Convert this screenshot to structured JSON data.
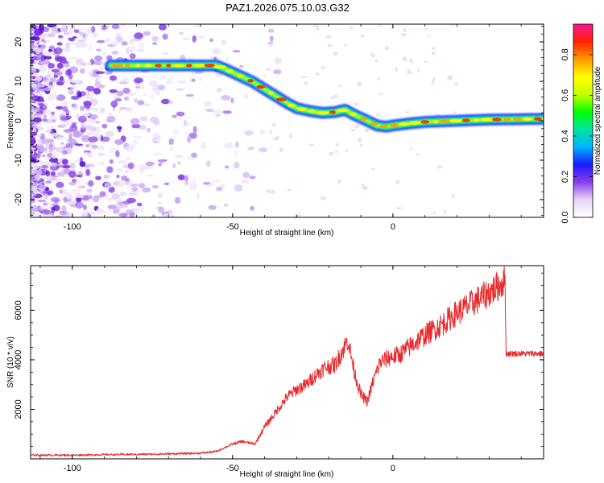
{
  "chart_data": [
    {
      "type": "heatmap",
      "title": "PAZ1.2026.075.10.03.G32",
      "xlabel": "Height of straight line (km)",
      "ylabel": "Frequency (Hz)",
      "xlim": [
        -113,
        47
      ],
      "ylim": [
        -24.5,
        24.5
      ],
      "xticks": [
        -100,
        -50,
        0
      ],
      "yticks": [
        -20,
        -10,
        0,
        10,
        20
      ],
      "colorbar": {
        "label": "Normalized spectral amplitude",
        "range": [
          0,
          0.95
        ],
        "ticks": [
          0.0,
          0.2,
          0.4,
          0.6,
          0.8
        ],
        "tick_labels": [
          "0.0",
          "0.2",
          "0.4",
          "0.6",
          "0.8"
        ],
        "colors": [
          "#ffffff",
          "#e6d5f7",
          "#8a3fe8",
          "#1a1aff",
          "#00b4ff",
          "#00e5a0",
          "#00ff00",
          "#c8ff00",
          "#ffff00",
          "#ff9900",
          "#ff2200",
          "#ff1493"
        ]
      },
      "ridge": {
        "description": "main spectral ridge: frequency (Hz) vs height (km)",
        "x": [
          -88,
          -75,
          -65,
          -55,
          -52,
          -48,
          -44,
          -40,
          -36,
          -33,
          -30,
          -26,
          -22,
          -18,
          -15,
          -12,
          -8,
          -5,
          -2,
          0,
          5,
          10,
          20,
          30,
          40,
          47
        ],
        "y": [
          14,
          14,
          14,
          14,
          13,
          11.5,
          10,
          8,
          6,
          4.5,
          3.2,
          2.5,
          2,
          2.2,
          2.8,
          1.5,
          0,
          -1.2,
          -1.5,
          -1.2,
          -0.7,
          -0.3,
          0,
          0.3,
          0.4,
          0.5
        ]
      }
    },
    {
      "type": "line",
      "xlabel": "Height of straight line (km)",
      "ylabel": "SNR (10 * v/v)",
      "xlim": [
        -113,
        47
      ],
      "ylim": [
        0,
        7800
      ],
      "xticks": [
        -100,
        -50,
        0
      ],
      "yticks": [
        2000,
        4000,
        6000
      ],
      "color": "#e8282a",
      "series": [
        {
          "name": "SNR",
          "x": [
            -113,
            -100,
            -90,
            -80,
            -70,
            -60,
            -55,
            -50,
            -47,
            -43,
            -40,
            -37,
            -33,
            -30,
            -27,
            -24,
            -21,
            -18,
            -16,
            -14,
            -12,
            -10,
            -8,
            -6,
            -4,
            -1,
            2,
            5,
            10,
            15,
            20,
            25,
            30,
            33,
            35,
            35.3,
            40,
            47
          ],
          "y": [
            150,
            150,
            170,
            180,
            200,
            230,
            300,
            600,
            700,
            600,
            1300,
            1800,
            2500,
            2800,
            3000,
            3400,
            3700,
            3800,
            4300,
            4800,
            3500,
            2600,
            2300,
            3200,
            3900,
            4100,
            4200,
            4500,
            5000,
            5400,
            5900,
            6300,
            6700,
            7000,
            7200,
            4250,
            4250,
            4250
          ]
        }
      ]
    }
  ]
}
